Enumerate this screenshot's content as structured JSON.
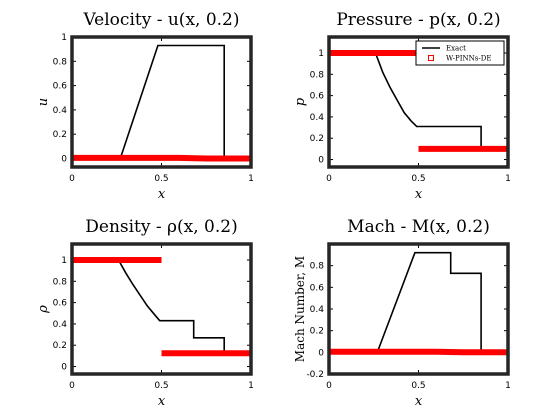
{
  "chart_data": [
    {
      "type": "line",
      "title": "Velocity - u(x, 0.2)",
      "xlabel": "x",
      "ylabel": "u",
      "xlim": [
        0,
        1
      ],
      "ylim": [
        -0.07,
        1.0
      ],
      "xticks": [
        0,
        0.5,
        1
      ],
      "xticklabels": [
        "0",
        "0.5",
        "1"
      ],
      "yticks": [
        0,
        0.2,
        0.4,
        0.6,
        0.8,
        1
      ],
      "yticklabels": [
        "0",
        "0.2",
        "0.4",
        "0.6",
        "0.8",
        "1"
      ],
      "legend": null,
      "series": [
        {
          "name": "Exact",
          "style": "line",
          "color": "#000000",
          "points": [
            [
              0,
              0
            ],
            [
              0.27,
              0
            ],
            [
              0.48,
              0.93
            ],
            [
              0.85,
              0.93
            ],
            [
              0.85,
              0
            ],
            [
              1,
              0
            ]
          ]
        },
        {
          "name": "W-PINNs-DE",
          "style": "markers",
          "color": "#ff0000",
          "points": [
            [
              0,
              0.005
            ],
            [
              0.25,
              0.005
            ],
            [
              0.5,
              0.005
            ],
            [
              0.6,
              0.005
            ],
            [
              0.75,
              0
            ],
            [
              1,
              0
            ]
          ]
        }
      ]
    },
    {
      "type": "line",
      "title": "Pressure - p(x, 0.2)",
      "xlabel": "x",
      "ylabel": "p",
      "xlim": [
        0,
        1
      ],
      "ylim": [
        -0.07,
        1.15
      ],
      "xticks": [
        0,
        0.5,
        1
      ],
      "xticklabels": [
        "0",
        "0.5",
        "1"
      ],
      "yticks": [
        0,
        0.2,
        0.4,
        0.6,
        0.8,
        1
      ],
      "yticklabels": [
        "0",
        "0.2",
        "0.4",
        "0.6",
        "0.8",
        "1"
      ],
      "legend": {
        "position": "top-right",
        "entries": [
          {
            "label": "Exact",
            "color": "#000000",
            "style": "line"
          },
          {
            "label": "W-PINNs-DE",
            "color": "#ff0000",
            "style": "marker"
          }
        ]
      },
      "series": [
        {
          "name": "Exact",
          "style": "line",
          "color": "#000000",
          "points": [
            [
              0,
              1
            ],
            [
              0.26,
              1
            ],
            [
              0.3,
              0.82
            ],
            [
              0.34,
              0.68
            ],
            [
              0.38,
              0.56
            ],
            [
              0.42,
              0.44
            ],
            [
              0.46,
              0.36
            ],
            [
              0.49,
              0.31
            ],
            [
              0.7,
              0.31
            ],
            [
              0.85,
              0.31
            ],
            [
              0.85,
              0.1
            ],
            [
              1,
              0.1
            ]
          ]
        },
        {
          "name": "W-PINNs-DE",
          "style": "markers",
          "color": "#ff0000",
          "segments": [
            [
              [
                0,
                1
              ],
              [
                0.5,
                1
              ]
            ],
            [
              [
                0.5,
                0.1
              ],
              [
                1,
                0.1
              ]
            ]
          ]
        }
      ]
    },
    {
      "type": "line",
      "title": "Density - ρ(x, 0.2)",
      "xlabel": "x",
      "ylabel": "ρ",
      "xlim": [
        0,
        1
      ],
      "ylim": [
        -0.07,
        1.15
      ],
      "xticks": [
        0,
        0.5,
        1
      ],
      "xticklabels": [
        "0",
        "0.5",
        "1"
      ],
      "yticks": [
        0,
        0.2,
        0.4,
        0.6,
        0.8,
        1
      ],
      "yticklabels": [
        "0",
        "0.2",
        "0.4",
        "0.6",
        "0.8",
        "1"
      ],
      "legend": null,
      "series": [
        {
          "name": "Exact",
          "style": "line",
          "color": "#000000",
          "points": [
            [
              0,
              1
            ],
            [
              0.26,
              1
            ],
            [
              0.3,
              0.88
            ],
            [
              0.34,
              0.77
            ],
            [
              0.38,
              0.67
            ],
            [
              0.42,
              0.57
            ],
            [
              0.46,
              0.49
            ],
            [
              0.49,
              0.43
            ],
            [
              0.68,
              0.43
            ],
            [
              0.68,
              0.27
            ],
            [
              0.85,
              0.27
            ],
            [
              0.85,
              0.125
            ],
            [
              1,
              0.125
            ]
          ]
        },
        {
          "name": "W-PINNs-DE",
          "style": "markers",
          "color": "#ff0000",
          "segments": [
            [
              [
                0,
                1
              ],
              [
                0.5,
                1
              ]
            ],
            [
              [
                0.5,
                0.125
              ],
              [
                1,
                0.125
              ]
            ]
          ]
        }
      ]
    },
    {
      "type": "line",
      "title": "Mach - M(x, 0.2)",
      "xlabel": "x",
      "ylabel": "Mach Number, M",
      "xlim": [
        0,
        1
      ],
      "ylim": [
        -0.2,
        1.0
      ],
      "xticks": [
        0,
        0.5,
        1
      ],
      "xticklabels": [
        "0",
        "0.5",
        "1"
      ],
      "yticks": [
        -0.2,
        0,
        0.2,
        0.4,
        0.6,
        0.8
      ],
      "yticklabels": [
        "-0.2",
        "0",
        "0.2",
        "0.4",
        "0.6",
        "0.8"
      ],
      "legend": null,
      "series": [
        {
          "name": "Exact",
          "style": "line",
          "color": "#000000",
          "points": [
            [
              0,
              0
            ],
            [
              0.27,
              0
            ],
            [
              0.48,
              0.92
            ],
            [
              0.68,
              0.92
            ],
            [
              0.68,
              0.73
            ],
            [
              0.85,
              0.73
            ],
            [
              0.85,
              0
            ],
            [
              1,
              0
            ]
          ]
        },
        {
          "name": "W-PINNs-DE",
          "style": "markers",
          "color": "#ff0000",
          "points": [
            [
              0,
              0.005
            ],
            [
              0.25,
              0.005
            ],
            [
              0.5,
              0.005
            ],
            [
              0.6,
              0.005
            ],
            [
              0.75,
              0
            ],
            [
              1,
              0
            ]
          ]
        }
      ]
    }
  ]
}
